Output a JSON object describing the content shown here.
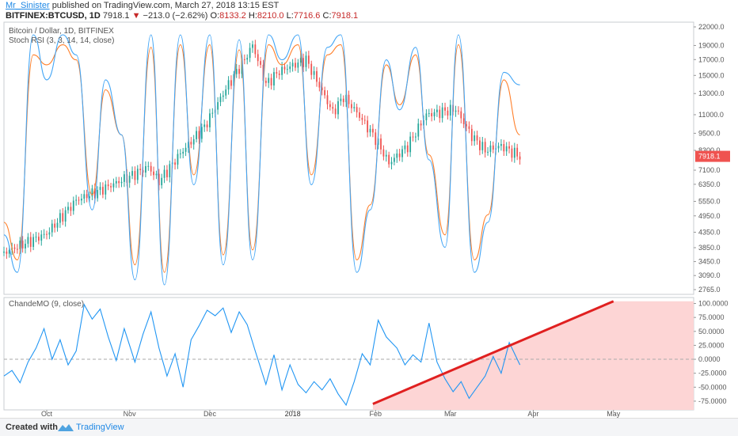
{
  "header": {
    "author": "Mr_Sinister",
    "published": "published on TradingView.com, March 27, 2018 13:15 EST",
    "symbol": "BITFINEX:BTCUSD, 1D",
    "last": "7918.1",
    "change": "−213.0 (−2.62%)",
    "o_label": "O:",
    "o_val": "8133.2",
    "h_label": "H:",
    "h_val": "8210.0",
    "l_label": "L:",
    "l_val": "7716.6",
    "c_label": "C:",
    "c_val": "7918.1"
  },
  "legend": {
    "pair": "Bitcoin / Dollar, 1D, BITFINEX",
    "stoch": "Stoch RSI (3, 3, 14, 14, close)",
    "cmo": "ChandeMO (9, close)"
  },
  "colors": {
    "up": "#26a69a",
    "down": "#ef5350",
    "stoch_k": "#42a5f5",
    "stoch_d": "#ff7f2a",
    "cmo": "#2196f3",
    "trend": "#e02020",
    "shade": "#fdd5d5",
    "price_tag": "#ef5350"
  },
  "chart_data": [
    {
      "type": "candlestick",
      "title": "Bitcoin / Dollar, 1D, BITFINEX",
      "x_ticks": [
        "Oct",
        "Nov",
        "Dec",
        "2018",
        "Feb",
        "Mar",
        "Apr",
        "May"
      ],
      "y_ticks": [
        22000,
        19000,
        17000,
        15000,
        13000,
        11000,
        9500,
        8300,
        7100,
        6350,
        5550,
        4950,
        4350,
        3850,
        3450,
        3090,
        2765
      ],
      "y_scale": "log",
      "ylim": [
        2765,
        22000
      ],
      "last_price_label": "7918.1",
      "approx_close_series": {
        "dates": [
          "2017-09-15",
          "2017-10-01",
          "2017-10-12",
          "2017-10-20",
          "2017-11-01",
          "2017-11-08",
          "2017-11-12",
          "2017-11-20",
          "2017-11-29",
          "2017-12-07",
          "2017-12-15",
          "2017-12-17",
          "2017-12-22",
          "2017-12-27",
          "2018-01-06",
          "2018-01-16",
          "2018-01-20",
          "2018-01-25",
          "2018-02-01",
          "2018-02-06",
          "2018-02-13",
          "2018-02-20",
          "2018-03-03",
          "2018-03-09",
          "2018-03-14",
          "2018-03-20",
          "2018-03-27"
        ],
        "close": [
          3700,
          4300,
          5600,
          6000,
          6750,
          7300,
          6500,
          8100,
          10000,
          13500,
          17600,
          19100,
          14000,
          15500,
          17000,
          11200,
          12700,
          11200,
          9100,
          7500,
          8600,
          11000,
          11500,
          9300,
          8300,
          8600,
          7918
        ]
      }
    },
    {
      "type": "line",
      "title": "Stoch RSI (3, 3, 14, 14, close)",
      "series": [
        {
          "name": "K",
          "values": [
            20,
            5,
            100,
            82,
            100,
            92,
            30,
            82,
            60,
            2,
            100,
            0,
            100,
            40,
            100,
            8,
            98,
            10,
            100,
            90,
            100,
            40,
            95,
            100,
            5,
            30,
            90,
            70,
            95,
            50,
            15,
            100,
            5,
            25,
            85,
            80
          ]
        },
        {
          "name": "D",
          "values": [
            25,
            10,
            92,
            88,
            96,
            90,
            36,
            78,
            60,
            8,
            95,
            5,
            96,
            44,
            96,
            12,
            94,
            14,
            96,
            88,
            96,
            44,
            92,
            96,
            10,
            32,
            88,
            72,
            92,
            52,
            20,
            96,
            10,
            28,
            82,
            60
          ]
        }
      ]
    },
    {
      "type": "line",
      "title": "ChandeMO (9, close)",
      "y_ticks": [
        100,
        75,
        50,
        25,
        0,
        -25,
        -50,
        -75
      ],
      "ylim": [
        -85,
        105
      ],
      "series": [
        {
          "name": "ChandeMO",
          "values": [
            -30,
            -20,
            -42,
            -5,
            20,
            55,
            0,
            35,
            -10,
            15,
            98,
            72,
            90,
            40,
            -2,
            55,
            -5,
            45,
            85,
            20,
            -30,
            10,
            -50,
            35,
            60,
            88,
            78,
            92,
            48,
            85,
            62,
            15,
            -45,
            8,
            -55,
            -10,
            -45,
            -60,
            -40,
            -55,
            -35,
            -62,
            -82,
            -40,
            10,
            -10,
            70,
            40,
            20,
            -10,
            8,
            -5,
            65,
            -5,
            -35,
            -58,
            -40,
            -70,
            -50,
            -30,
            5,
            -25,
            30,
            -10
          ]
        }
      ]
    }
  ]
}
